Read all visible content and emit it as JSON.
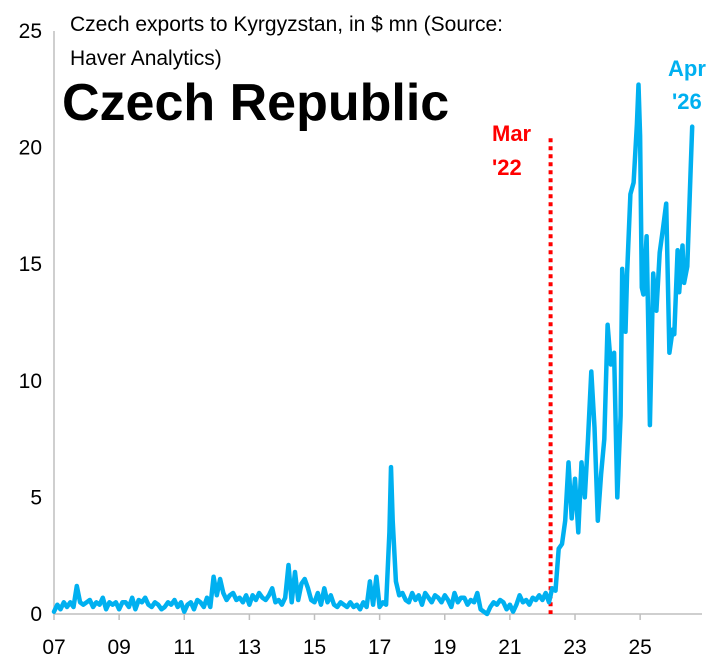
{
  "chart_data": {
    "type": "line",
    "title": "Czech Republic",
    "subtitle_lines": [
      "Czech exports to Kyrgyzstan, in $ mn (Source:",
      "Haver Analytics)"
    ],
    "xlabel": "",
    "ylabel": "",
    "xlim": [
      2007.0,
      2026.9
    ],
    "ylim": [
      0,
      25
    ],
    "yticks": [
      0,
      5,
      10,
      15,
      20,
      25
    ],
    "ytick_labels": [
      "0",
      "5",
      "10",
      "15",
      "20",
      "25"
    ],
    "xticks": [
      2007,
      2009,
      2011,
      2013,
      2015,
      2017,
      2019,
      2021,
      2023,
      2025
    ],
    "xtick_labels": [
      "07",
      "09",
      "11",
      "13",
      "15",
      "17",
      "19",
      "21",
      "23",
      "25"
    ],
    "grid": false,
    "colors": {
      "series": "#00b0f0",
      "marker_line": "#ff0000",
      "annotation_end": "#00b0f0"
    },
    "series": [
      {
        "values": [
          [
            2007.0,
            0.1
          ],
          [
            2007.1,
            0.4
          ],
          [
            2007.2,
            0.2
          ],
          [
            2007.3,
            0.5
          ],
          [
            2007.4,
            0.3
          ],
          [
            2007.5,
            0.5
          ],
          [
            2007.6,
            0.3
          ],
          [
            2007.7,
            1.2
          ],
          [
            2007.8,
            0.5
          ],
          [
            2007.9,
            0.4
          ],
          [
            2008.0,
            0.5
          ],
          [
            2008.1,
            0.6
          ],
          [
            2008.2,
            0.3
          ],
          [
            2008.3,
            0.5
          ],
          [
            2008.4,
            0.4
          ],
          [
            2008.5,
            0.7
          ],
          [
            2008.6,
            0.2
          ],
          [
            2008.7,
            0.5
          ],
          [
            2008.8,
            0.4
          ],
          [
            2008.9,
            0.5
          ],
          [
            2009.0,
            0.2
          ],
          [
            2009.1,
            0.5
          ],
          [
            2009.2,
            0.5
          ],
          [
            2009.3,
            0.3
          ],
          [
            2009.4,
            0.7
          ],
          [
            2009.5,
            0.2
          ],
          [
            2009.6,
            0.6
          ],
          [
            2009.7,
            0.5
          ],
          [
            2009.8,
            0.7
          ],
          [
            2009.9,
            0.4
          ],
          [
            2010.0,
            0.3
          ],
          [
            2010.1,
            0.5
          ],
          [
            2010.2,
            0.4
          ],
          [
            2010.3,
            0.2
          ],
          [
            2010.4,
            0.3
          ],
          [
            2010.5,
            0.5
          ],
          [
            2010.6,
            0.4
          ],
          [
            2010.7,
            0.6
          ],
          [
            2010.8,
            0.3
          ],
          [
            2010.9,
            0.5
          ],
          [
            2011.0,
            0.1
          ],
          [
            2011.1,
            0.4
          ],
          [
            2011.2,
            0.5
          ],
          [
            2011.3,
            0.2
          ],
          [
            2011.4,
            0.6
          ],
          [
            2011.5,
            0.5
          ],
          [
            2011.6,
            0.3
          ],
          [
            2011.7,
            0.7
          ],
          [
            2011.8,
            0.3
          ],
          [
            2011.9,
            1.6
          ],
          [
            2012.0,
            0.8
          ],
          [
            2012.1,
            1.5
          ],
          [
            2012.2,
            0.9
          ],
          [
            2012.3,
            0.6
          ],
          [
            2012.4,
            0.8
          ],
          [
            2012.5,
            0.9
          ],
          [
            2012.6,
            0.6
          ],
          [
            2012.7,
            0.7
          ],
          [
            2012.8,
            0.5
          ],
          [
            2012.9,
            0.8
          ],
          [
            2013.0,
            0.4
          ],
          [
            2013.1,
            0.8
          ],
          [
            2013.2,
            0.6
          ],
          [
            2013.3,
            0.9
          ],
          [
            2013.4,
            0.7
          ],
          [
            2013.5,
            0.6
          ],
          [
            2013.6,
            0.8
          ],
          [
            2013.7,
            1.1
          ],
          [
            2013.8,
            0.5
          ],
          [
            2013.9,
            0.6
          ],
          [
            2014.0,
            0.4
          ],
          [
            2014.1,
            0.7
          ],
          [
            2014.2,
            2.1
          ],
          [
            2014.3,
            0.5
          ],
          [
            2014.4,
            1.8
          ],
          [
            2014.5,
            0.6
          ],
          [
            2014.6,
            1.3
          ],
          [
            2014.7,
            1.5
          ],
          [
            2014.8,
            1.1
          ],
          [
            2014.9,
            0.6
          ],
          [
            2015.0,
            0.5
          ],
          [
            2015.1,
            0.9
          ],
          [
            2015.2,
            0.4
          ],
          [
            2015.3,
            1.1
          ],
          [
            2015.4,
            0.5
          ],
          [
            2015.5,
            0.8
          ],
          [
            2015.6,
            0.4
          ],
          [
            2015.7,
            0.3
          ],
          [
            2015.8,
            0.5
          ],
          [
            2015.9,
            0.4
          ],
          [
            2016.0,
            0.3
          ],
          [
            2016.1,
            0.5
          ],
          [
            2016.2,
            0.3
          ],
          [
            2016.3,
            0.4
          ],
          [
            2016.4,
            0.2
          ],
          [
            2016.5,
            0.5
          ],
          [
            2016.6,
            0.3
          ],
          [
            2016.7,
            1.4
          ],
          [
            2016.8,
            0.4
          ],
          [
            2016.9,
            1.6
          ],
          [
            2017.0,
            0.3
          ],
          [
            2017.1,
            0.5
          ],
          [
            2017.2,
            0.4
          ],
          [
            2017.3,
            3.5
          ],
          [
            2017.35,
            6.3
          ],
          [
            2017.4,
            4.0
          ],
          [
            2017.5,
            1.4
          ],
          [
            2017.6,
            0.8
          ],
          [
            2017.7,
            0.9
          ],
          [
            2017.8,
            0.6
          ],
          [
            2017.9,
            0.5
          ],
          [
            2018.0,
            0.9
          ],
          [
            2018.1,
            0.6
          ],
          [
            2018.2,
            0.8
          ],
          [
            2018.3,
            0.4
          ],
          [
            2018.4,
            0.9
          ],
          [
            2018.5,
            0.7
          ],
          [
            2018.6,
            0.5
          ],
          [
            2018.7,
            0.8
          ],
          [
            2018.8,
            0.7
          ],
          [
            2018.9,
            0.5
          ],
          [
            2019.0,
            0.8
          ],
          [
            2019.1,
            0.6
          ],
          [
            2019.2,
            0.3
          ],
          [
            2019.3,
            0.9
          ],
          [
            2019.4,
            0.5
          ],
          [
            2019.5,
            0.7
          ],
          [
            2019.6,
            0.7
          ],
          [
            2019.7,
            0.4
          ],
          [
            2019.8,
            0.6
          ],
          [
            2019.9,
            0.5
          ],
          [
            2020.0,
            0.9
          ],
          [
            2020.1,
            0.2
          ],
          [
            2020.2,
            0.1
          ],
          [
            2020.3,
            0.0
          ],
          [
            2020.4,
            0.3
          ],
          [
            2020.5,
            0.5
          ],
          [
            2020.6,
            0.4
          ],
          [
            2020.7,
            0.6
          ],
          [
            2020.8,
            0.5
          ],
          [
            2020.9,
            0.2
          ],
          [
            2021.0,
            0.4
          ],
          [
            2021.1,
            0.1
          ],
          [
            2021.2,
            0.4
          ],
          [
            2021.3,
            0.8
          ],
          [
            2021.4,
            0.5
          ],
          [
            2021.5,
            0.6
          ],
          [
            2021.6,
            0.4
          ],
          [
            2021.7,
            0.7
          ],
          [
            2021.8,
            0.6
          ],
          [
            2021.9,
            0.8
          ],
          [
            2022.0,
            0.6
          ],
          [
            2022.1,
            0.9
          ],
          [
            2022.2,
            0.5
          ],
          [
            2022.3,
            1.1
          ],
          [
            2022.4,
            1.0
          ],
          [
            2022.5,
            2.8
          ],
          [
            2022.6,
            3.0
          ],
          [
            2022.7,
            4.0
          ],
          [
            2022.8,
            6.5
          ],
          [
            2022.9,
            4.1
          ],
          [
            2023.0,
            5.8
          ],
          [
            2023.1,
            3.5
          ],
          [
            2023.2,
            6.5
          ],
          [
            2023.3,
            5.0
          ],
          [
            2023.4,
            7.5
          ],
          [
            2023.5,
            10.4
          ],
          [
            2023.6,
            8.0
          ],
          [
            2023.7,
            4.0
          ],
          [
            2023.8,
            6.0
          ],
          [
            2023.9,
            7.5
          ],
          [
            2024.0,
            12.4
          ],
          [
            2024.1,
            10.7
          ],
          [
            2024.2,
            11.2
          ],
          [
            2024.3,
            5.0
          ],
          [
            2024.4,
            8.5
          ],
          [
            2024.45,
            14.8
          ],
          [
            2024.55,
            12.1
          ],
          [
            2024.6,
            14.6
          ],
          [
            2024.7,
            18.0
          ],
          [
            2024.8,
            18.5
          ],
          [
            2024.9,
            21.0
          ],
          [
            2024.95,
            22.7
          ],
          [
            2025.0,
            20.5
          ],
          [
            2025.05,
            14.0
          ],
          [
            2025.1,
            13.7
          ],
          [
            2025.2,
            16.2
          ],
          [
            2025.25,
            12.3
          ],
          [
            2025.3,
            8.1
          ],
          [
            2025.4,
            14.6
          ],
          [
            2025.5,
            13.0
          ],
          [
            2025.6,
            15.5
          ],
          [
            2025.7,
            16.5
          ],
          [
            2025.8,
            17.6
          ],
          [
            2025.9,
            11.2
          ],
          [
            2026.0,
            12.2
          ],
          [
            2026.05,
            12.0
          ],
          [
            2026.15,
            15.6
          ],
          [
            2026.2,
            13.8
          ],
          [
            2026.3,
            15.8
          ],
          [
            2026.35,
            14.2
          ],
          [
            2026.45,
            14.9
          ],
          [
            2026.55,
            19.0
          ],
          [
            2026.6,
            20.9
          ]
        ]
      }
    ],
    "annotations": [
      {
        "text_lines": [
          "Mar",
          "'22"
        ],
        "x": 2022.25,
        "color": "#ff0000",
        "style": "dotted vertical line"
      },
      {
        "text_lines": [
          "Apr",
          "'26"
        ],
        "color": "#00b0f0"
      }
    ]
  }
}
